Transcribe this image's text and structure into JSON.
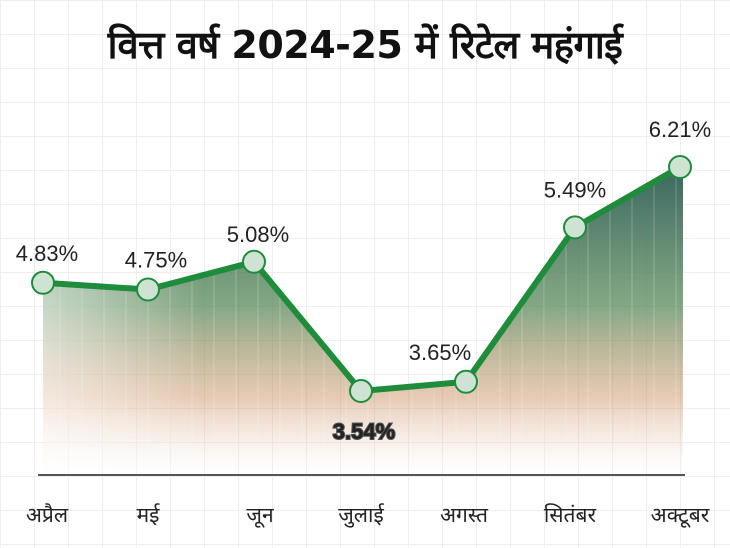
{
  "title": "वित्त वर्ष 2024-25 में रिटेल महंगाई",
  "chart_data": {
    "type": "line",
    "title": "वित्त वर्ष 2024-25 में रिटेल महंगाई",
    "categories": [
      "अप्रैल",
      "मई",
      "जून",
      "जुलाई",
      "अगस्त",
      "सितंबर",
      "अक्टूबर"
    ],
    "values": [
      4.83,
      4.75,
      5.08,
      3.54,
      3.65,
      5.49,
      6.21
    ],
    "data_labels": [
      "4.83%",
      "4.75%",
      "5.08%",
      "3.54%",
      "3.65%",
      "5.49%",
      "6.21%"
    ],
    "xlabel": "",
    "ylabel": "",
    "unit": "%",
    "grid": false,
    "legend": "none",
    "colors": {
      "line": "#1e8c3a",
      "marker_fill": "#cfe3d3",
      "area_top": "#2f5e58",
      "area_bottom": "#ffffff"
    }
  }
}
